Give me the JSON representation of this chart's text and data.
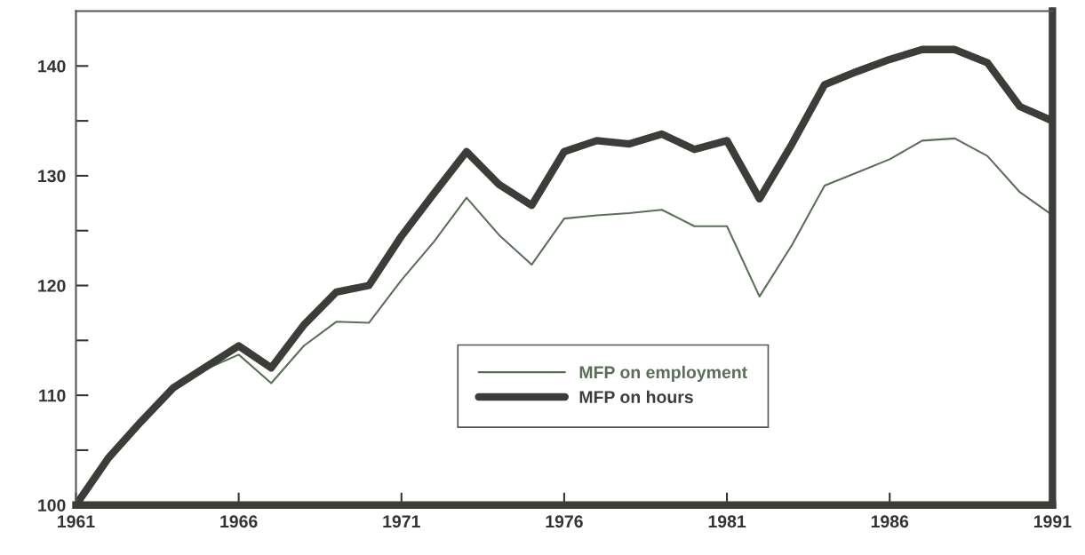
{
  "chart_data": {
    "type": "line",
    "x": [
      1961,
      1962,
      1963,
      1964,
      1965,
      1966,
      1967,
      1968,
      1969,
      1970,
      1971,
      1972,
      1973,
      1974,
      1975,
      1976,
      1977,
      1978,
      1979,
      1980,
      1981,
      1982,
      1983,
      1984,
      1985,
      1986,
      1987,
      1988,
      1989,
      1990,
      1991
    ],
    "series": [
      {
        "name": "MFP on employment",
        "color": "#5a6e58",
        "values": [
          100,
          104.2,
          107.5,
          110.6,
          112.4,
          113.7,
          111.1,
          114.5,
          116.7,
          116.6,
          120.5,
          124.0,
          128.0,
          124.6,
          121.9,
          126.1,
          126.4,
          126.6,
          126.9,
          125.4,
          125.4,
          119.0,
          123.7,
          129.1,
          130.3,
          131.5,
          133.2,
          133.4,
          131.8,
          128.5,
          126.4
        ]
      },
      {
        "name": "MFP on hours",
        "color": "#3a3d38",
        "values": [
          100,
          104.3,
          107.6,
          110.7,
          112.6,
          114.5,
          112.5,
          116.4,
          119.4,
          120.0,
          124.5,
          128.4,
          132.2,
          129.2,
          127.3,
          132.2,
          133.2,
          132.9,
          133.8,
          132.4,
          133.2,
          127.9,
          132.9,
          138.3,
          139.5,
          140.6,
          141.5,
          141.5,
          140.3,
          136.3,
          135.0
        ]
      }
    ],
    "xlim": [
      1961,
      1991
    ],
    "xticks": [
      1961,
      1966,
      1971,
      1976,
      1981,
      1986,
      1991
    ],
    "ylim": [
      100,
      145
    ],
    "yticks": [
      100,
      {
        "value": 105,
        "label": null
      },
      110,
      {
        "value": 115,
        "label": null
      },
      120,
      {
        "value": 125,
        "label": null
      },
      130,
      {
        "value": 135,
        "label": null
      },
      140
    ],
    "grid": false,
    "legend": "bottom",
    "marker": "none",
    "line_style": "solid"
  }
}
